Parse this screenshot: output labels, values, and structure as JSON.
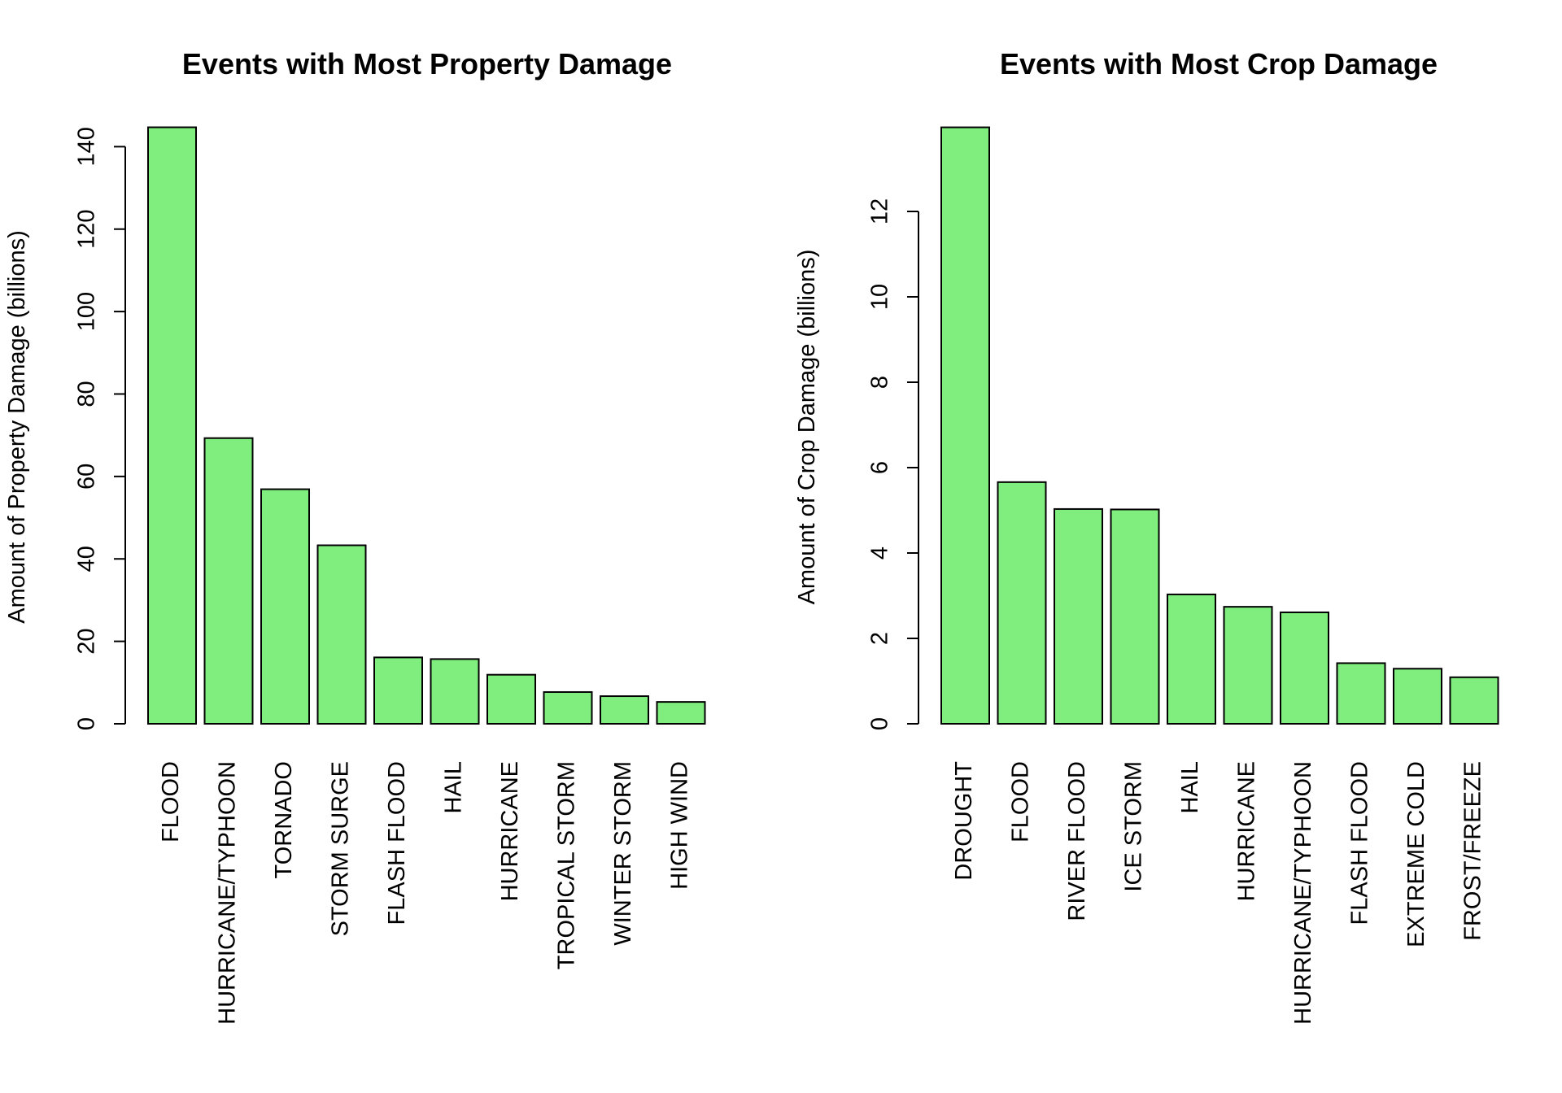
{
  "chart_data": [
    {
      "type": "bar",
      "title": "Events with Most Property Damage",
      "xlabel": "",
      "ylabel": "Amount of Property Damage (billions)",
      "ylim": [
        0,
        145
      ],
      "yticks": [
        0,
        20,
        40,
        60,
        80,
        100,
        120,
        140
      ],
      "bar_color": "#80ee7e",
      "categories": [
        "FLOOD",
        "HURRICANE/TYPHOON",
        "TORNADO",
        "STORM SURGE",
        "FLASH FLOOD",
        "HAIL",
        "HURRICANE",
        "TROPICAL STORM",
        "WINTER STORM",
        "HIGH WIND"
      ],
      "values": [
        144.7,
        69.3,
        56.9,
        43.3,
        16.1,
        15.7,
        11.9,
        7.7,
        6.7,
        5.3
      ]
    },
    {
      "type": "bar",
      "title": "Events with Most Crop Damage",
      "xlabel": "",
      "ylabel": "Amount of Crop Damage (billions)",
      "ylim": [
        0,
        14
      ],
      "yticks": [
        0,
        2,
        4,
        6,
        8,
        10,
        12
      ],
      "bar_color": "#80ee7e",
      "categories": [
        "DROUGHT",
        "FLOOD",
        "RIVER FLOOD",
        "ICE STORM",
        "HAIL",
        "HURRICANE",
        "HURRICANE/TYPHOON",
        "FLASH FLOOD",
        "EXTREME COLD",
        "FROST/FREEZE"
      ],
      "values": [
        13.97,
        5.66,
        5.03,
        5.02,
        3.03,
        2.74,
        2.61,
        1.42,
        1.29,
        1.09
      ]
    }
  ]
}
